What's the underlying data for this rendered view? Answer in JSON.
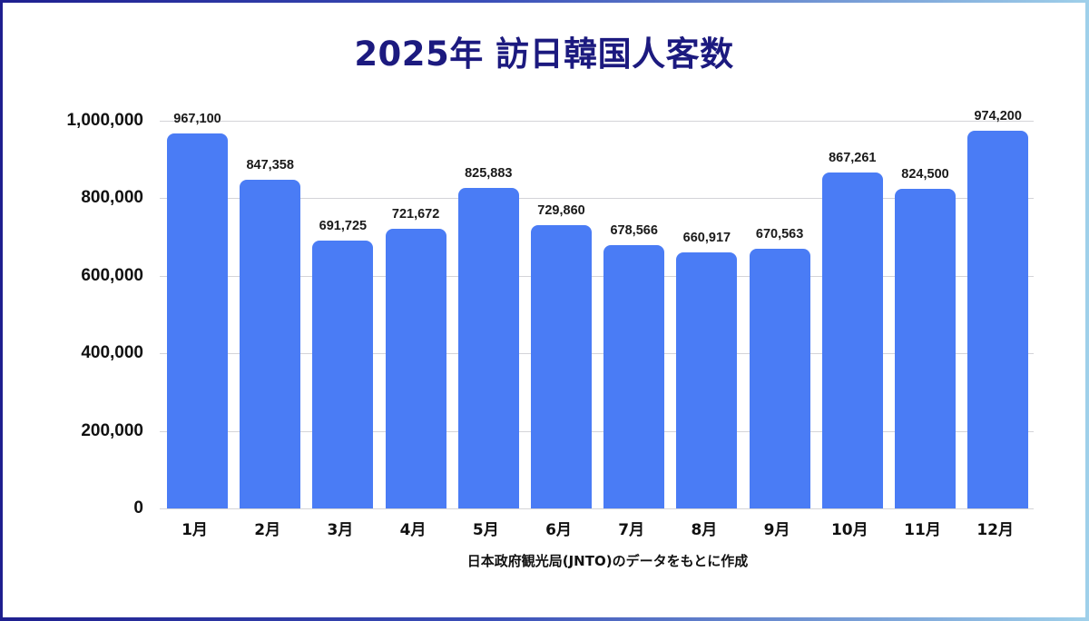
{
  "frame": {
    "border_gradient": [
      "#1e1f8f",
      "#9fd0ea"
    ],
    "background": "#ffffff"
  },
  "chart_data": {
    "type": "bar",
    "title": "2025年 訪日韓国人客数",
    "xlabel": "",
    "ylabel": "",
    "categories": [
      "1月",
      "2月",
      "3月",
      "4月",
      "5月",
      "6月",
      "7月",
      "8月",
      "9月",
      "10月",
      "11月",
      "12月"
    ],
    "values": [
      967100,
      847358,
      691725,
      721672,
      825883,
      729860,
      678566,
      660917,
      670563,
      867261,
      824500,
      974200
    ],
    "value_labels": [
      "967,100",
      "847,358",
      "691,725",
      "721,672",
      "825,883",
      "729,860",
      "678,566",
      "660,917",
      "670,563",
      "867,261",
      "824,500",
      "974,200"
    ],
    "ylim": [
      0,
      1000000
    ],
    "yticks": [
      0,
      200000,
      400000,
      600000,
      800000,
      1000000
    ],
    "ytick_labels": [
      "0",
      "200,000",
      "400,000",
      "600,000",
      "800,000",
      "1,000,000"
    ],
    "grid": true,
    "legend": null,
    "bar_color": "#4a7cf5",
    "source_note": "日本政府観光局(JNTO)のデータをもとに作成"
  }
}
